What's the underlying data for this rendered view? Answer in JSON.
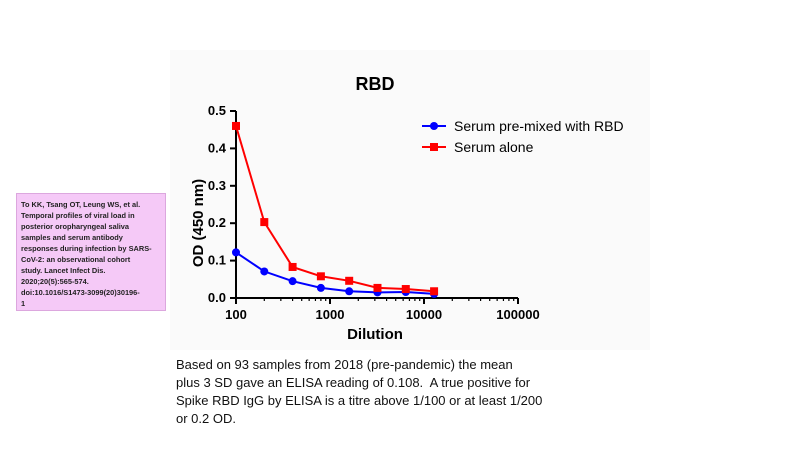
{
  "chart_data": {
    "type": "line",
    "title": "RBD",
    "xlabel": "Dilution",
    "ylabel": "OD (450 nm)",
    "x_scale": "log",
    "xlim": [
      100,
      100000
    ],
    "ylim": [
      0,
      0.5
    ],
    "x_ticks": [
      "100",
      "1000",
      "10000",
      "100000"
    ],
    "y_ticks": [
      "0.0",
      "0.1",
      "0.2",
      "0.3",
      "0.4",
      "0.5"
    ],
    "legend_position": "top-right",
    "x": [
      100,
      200,
      400,
      800,
      1600,
      3200,
      6400,
      12800
    ],
    "series": [
      {
        "name": "Serum pre-mixed with RBD",
        "color": "#0000ff",
        "marker": "circle",
        "values": [
          0.122,
          0.071,
          0.045,
          0.027,
          0.018,
          0.015,
          0.016,
          0.011
        ]
      },
      {
        "name": "Serum alone",
        "color": "#ff0000",
        "marker": "square",
        "values": [
          0.46,
          0.203,
          0.083,
          0.058,
          0.046,
          0.027,
          0.024,
          0.018
        ]
      }
    ]
  },
  "citation": "To KK, Tsang OT, Leung WS, et al.\nTemporal profiles of viral load in\nposterior oropharyngeal saliva\nsamples and serum antibody\nresponses during infection by SARS-\nCoV-2: an observational cohort\nstudy. Lancet Infect Dis.\n2020;20(5):565-574.\ndoi:10.1016/S1473-3099(20)30196-\n1",
  "caption": "Based on 93 samples from 2018 (pre-pandemic) the mean\nplus 3 SD gave an ELISA reading of 0.108.  A true positive for\nSpike RBD IgG by ELISA is a titre above 1/100 or at least 1/200\nor 0.2 OD."
}
